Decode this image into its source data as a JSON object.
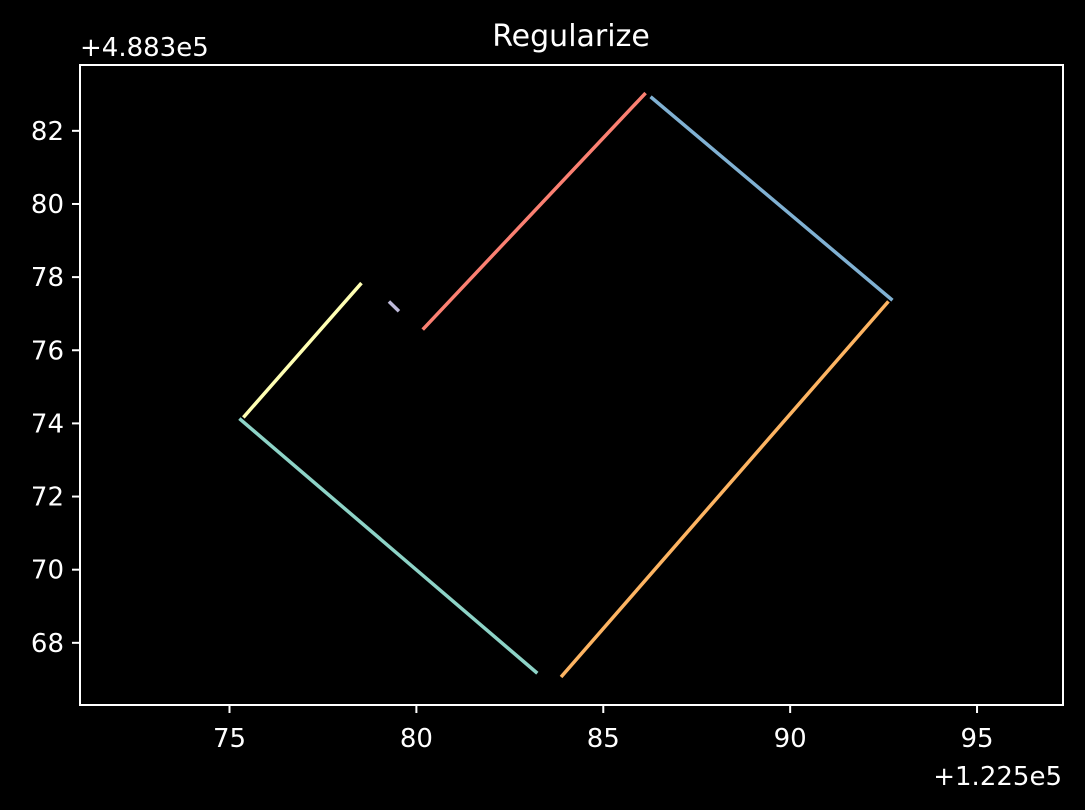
{
  "chart_data": {
    "type": "line",
    "title": "Regularize",
    "xlabel": "",
    "ylabel": "",
    "x_offset_label": "+1.225e5",
    "y_offset_label": "+4.883e5",
    "xlim": [
      71.0,
      97.3
    ],
    "ylim": [
      66.3,
      83.8
    ],
    "x_ticks": [
      75,
      80,
      85,
      90,
      95
    ],
    "x_tick_labels": [
      "75",
      "80",
      "85",
      "90",
      "95"
    ],
    "y_ticks": [
      68,
      70,
      72,
      74,
      76,
      78,
      80,
      82
    ],
    "y_tick_labels": [
      "68",
      "70",
      "72",
      "74",
      "76",
      "78",
      "80",
      "82"
    ],
    "grid": false,
    "legend": "none",
    "series": [
      {
        "color": "#8dd3c7",
        "x": [
          75.3,
          83.2
        ],
        "y": [
          74.1,
          67.2
        ]
      },
      {
        "color": "#ffffb3",
        "x": [
          75.4,
          78.5
        ],
        "y": [
          74.2,
          77.8
        ]
      },
      {
        "color": "#bebada",
        "x": [
          79.3,
          79.5
        ],
        "y": [
          77.3,
          77.1
        ]
      },
      {
        "color": "#fb8072",
        "x": [
          80.2,
          86.1
        ],
        "y": [
          76.6,
          83.0
        ]
      },
      {
        "color": "#80b1d3",
        "x": [
          86.3,
          92.7
        ],
        "y": [
          82.9,
          77.4
        ]
      },
      {
        "color": "#fdb462",
        "x": [
          83.9,
          92.6
        ],
        "y": [
          67.1,
          77.3
        ]
      }
    ]
  }
}
